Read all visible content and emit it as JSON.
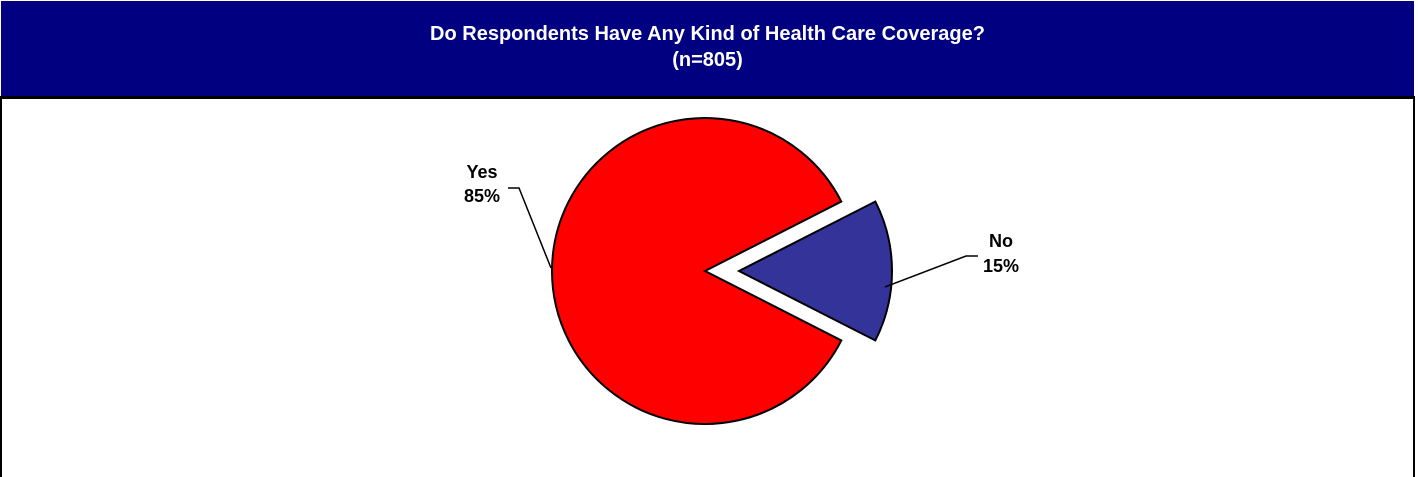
{
  "chart_data": {
    "type": "pie",
    "title": "Do Respondents Have Any Kind of Health Care Coverage?",
    "subtitle": "(n=805)",
    "slices": [
      {
        "label": "Yes",
        "value": 85,
        "value_label": "85%",
        "color": "#FF0000",
        "exploded": false
      },
      {
        "label": "No",
        "value": 15,
        "value_label": "15%",
        "color": "#333399",
        "exploded": true
      }
    ]
  },
  "colors": {
    "header_background": "#000080",
    "header_text": "#FFFFFF"
  }
}
